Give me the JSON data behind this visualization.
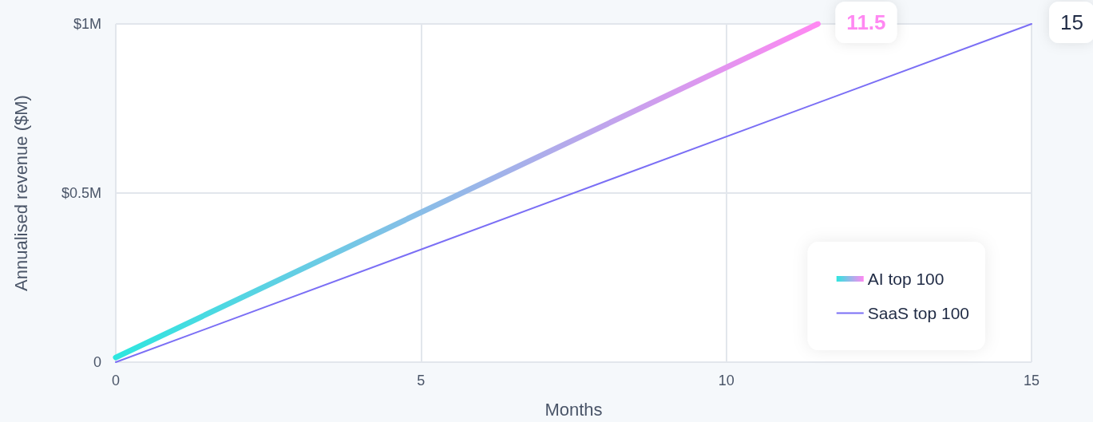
{
  "chart_data": {
    "type": "line",
    "xlabel": "Months",
    "ylabel": "Annualised revenue ($M)",
    "xlim": [
      0,
      15
    ],
    "xticks": [
      0,
      5,
      10,
      15
    ],
    "ylim": [
      0,
      1
    ],
    "yticks": [
      0,
      {
        "value": 0.5,
        "label": "$0.5M"
      },
      {
        "value": 1,
        "label": "$1M"
      }
    ],
    "series": [
      {
        "name": "AI top 100",
        "x": [
          0,
          11.5
        ],
        "values": [
          0.014,
          1
        ],
        "colors": [
          "#2ee6df",
          "#ff88f2"
        ]
      },
      {
        "name": "SaaS top 100",
        "x": [
          0,
          15
        ],
        "values": [
          0,
          1
        ],
        "color": "#7b6ff5"
      }
    ],
    "annotations": [
      {
        "text": "11.5",
        "x": 11.5,
        "y": 1
      },
      {
        "text": "15",
        "x": 15,
        "y": 1
      }
    ],
    "grid": true,
    "legend": "bottom right",
    "marker": "none",
    "line_style": "solid"
  }
}
